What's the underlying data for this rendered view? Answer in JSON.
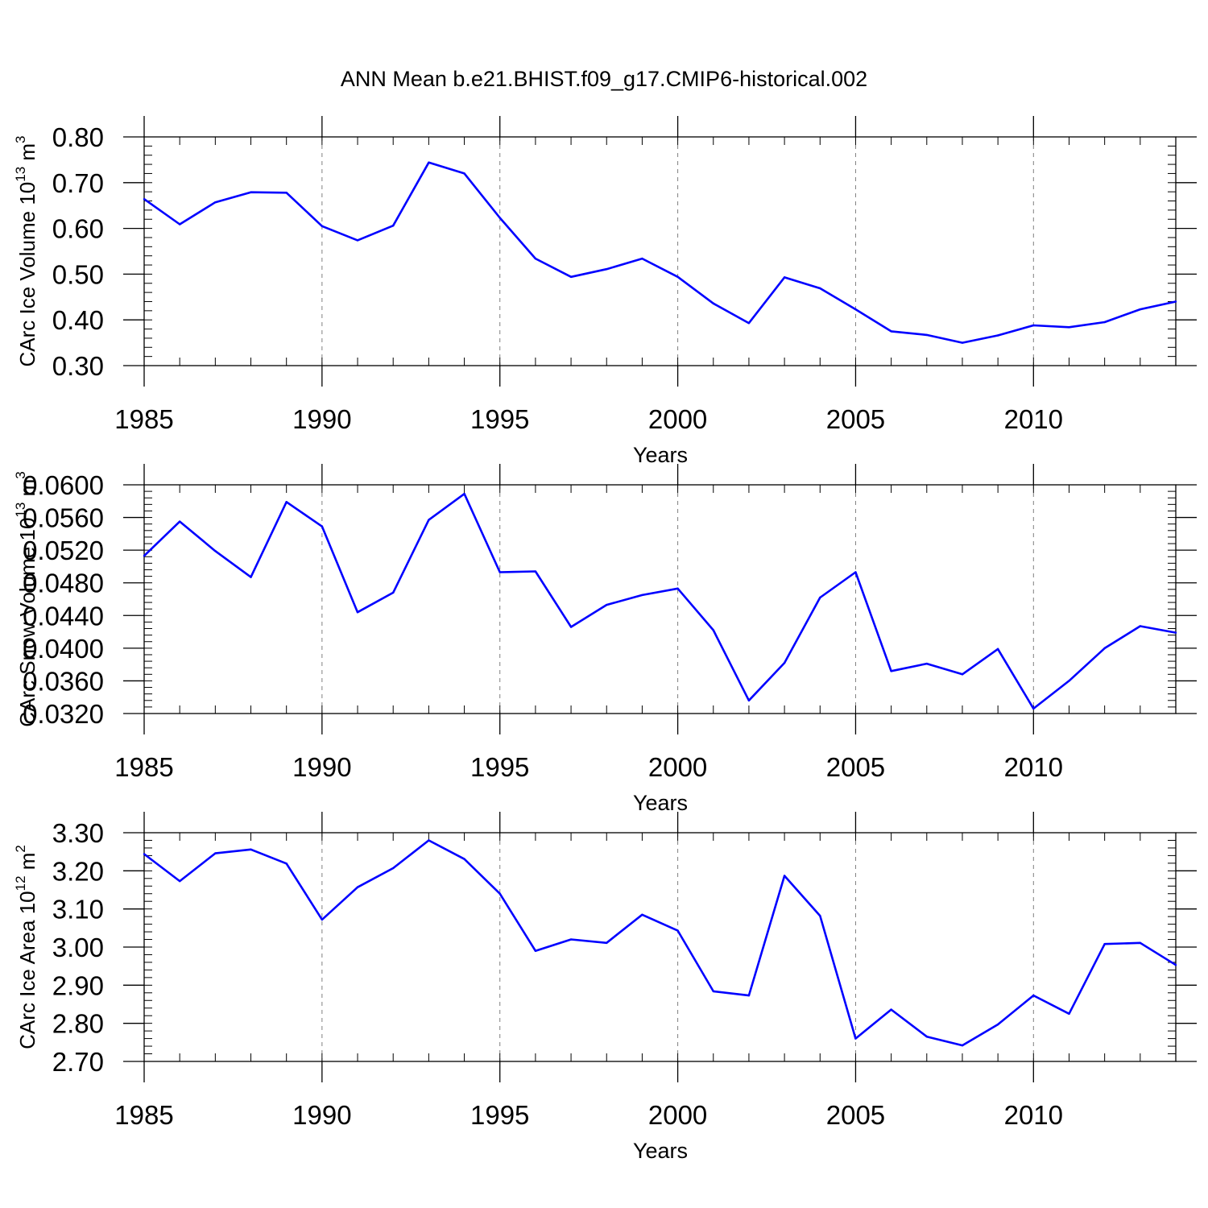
{
  "title": "ANN Mean b.e21.BHIST.f09_g17.CMIP6-historical.002",
  "colors": {
    "line": "#0000ff",
    "axis": "#000000",
    "grid": "#808080"
  },
  "chart_data": [
    {
      "type": "line",
      "ylabel": "CArc Ice Volume 10",
      "ylabel_exp": "13",
      "ylabel_unit": " m",
      "ylabel_unit_exp": "3",
      "xlabel": "Years",
      "xlim": [
        1985,
        2014
      ],
      "ylim": [
        0.3,
        0.8
      ],
      "yticks": [
        "0.30",
        "0.40",
        "0.50",
        "0.60",
        "0.70",
        "0.80"
      ],
      "ytick_values": [
        0.3,
        0.4,
        0.5,
        0.6,
        0.7,
        0.8
      ],
      "xticks": [
        "1985",
        "1990",
        "1995",
        "2000",
        "2005",
        "2010"
      ],
      "xtick_values": [
        1985,
        1990,
        1995,
        2000,
        2005,
        2010
      ],
      "grid_x": [
        1990,
        1995,
        2000,
        2005,
        2010
      ],
      "x": [
        1985,
        1986,
        1987,
        1988,
        1989,
        1990,
        1991,
        1992,
        1993,
        1994,
        1995,
        1996,
        1997,
        1998,
        1999,
        2000,
        2001,
        2002,
        2003,
        2004,
        2005,
        2006,
        2007,
        2008,
        2009,
        2010,
        2011,
        2012,
        2013,
        2014
      ],
      "values": [
        0.664,
        0.609,
        0.657,
        0.679,
        0.678,
        0.605,
        0.574,
        0.606,
        0.744,
        0.72,
        0.623,
        0.534,
        0.494,
        0.511,
        0.534,
        0.494,
        0.436,
        0.393,
        0.493,
        0.469,
        0.423,
        0.375,
        0.367,
        0.35,
        0.366,
        0.388,
        0.384,
        0.395,
        0.423,
        0.44
      ]
    },
    {
      "type": "line",
      "ylabel": "CArc Snow Volume 10",
      "ylabel_exp": "13",
      "ylabel_unit": " m",
      "ylabel_unit_exp": "3",
      "xlabel": "Years",
      "xlim": [
        1985,
        2014
      ],
      "ylim": [
        0.032,
        0.06
      ],
      "yticks": [
        "0.0320",
        "0.0360",
        "0.0400",
        "0.0440",
        "0.0480",
        "0.0520",
        "0.0560",
        "0.0600"
      ],
      "ytick_values": [
        0.032,
        0.036,
        0.04,
        0.044,
        0.048,
        0.052,
        0.056,
        0.06
      ],
      "xticks": [
        "1985",
        "1990",
        "1995",
        "2000",
        "2005",
        "2010"
      ],
      "xtick_values": [
        1985,
        1990,
        1995,
        2000,
        2005,
        2010
      ],
      "grid_x": [
        1990,
        1995,
        2000,
        2005,
        2010
      ],
      "x": [
        1985,
        1986,
        1987,
        1988,
        1989,
        1990,
        1991,
        1992,
        1993,
        1994,
        1995,
        1996,
        1997,
        1998,
        1999,
        2000,
        2001,
        2002,
        2003,
        2004,
        2005,
        2006,
        2007,
        2008,
        2009,
        2010,
        2011,
        2012,
        2013,
        2014
      ],
      "values": [
        0.0513,
        0.0555,
        0.0519,
        0.0487,
        0.0579,
        0.0549,
        0.0444,
        0.0468,
        0.0557,
        0.0589,
        0.0493,
        0.0494,
        0.0426,
        0.0453,
        0.0465,
        0.0473,
        0.0422,
        0.0336,
        0.0382,
        0.0462,
        0.0493,
        0.0372,
        0.0381,
        0.0368,
        0.0399,
        0.0326,
        0.036,
        0.04,
        0.0427,
        0.0419
      ]
    },
    {
      "type": "line",
      "ylabel": "CArc Ice Area 10",
      "ylabel_exp": "12",
      "ylabel_unit": " m",
      "ylabel_unit_exp": "2",
      "xlabel": "Years",
      "xlim": [
        1985,
        2014
      ],
      "ylim": [
        2.7,
        3.3
      ],
      "yticks": [
        "2.70",
        "2.80",
        "2.90",
        "3.00",
        "3.10",
        "3.20",
        "3.30"
      ],
      "ytick_values": [
        2.7,
        2.8,
        2.9,
        3.0,
        3.1,
        3.2,
        3.3
      ],
      "xticks": [
        "1985",
        "1990",
        "1995",
        "2000",
        "2005",
        "2010"
      ],
      "xtick_values": [
        1985,
        1990,
        1995,
        2000,
        2005,
        2010
      ],
      "grid_x": [
        1990,
        1995,
        2000,
        2005,
        2010
      ],
      "x": [
        1985,
        1986,
        1987,
        1988,
        1989,
        1990,
        1991,
        1992,
        1993,
        1994,
        1995,
        1996,
        1997,
        1998,
        1999,
        2000,
        2001,
        2002,
        2003,
        2004,
        2005,
        2006,
        2007,
        2008,
        2009,
        2010,
        2011,
        2012,
        2013,
        2014
      ],
      "values": [
        3.244,
        3.173,
        3.246,
        3.256,
        3.219,
        3.072,
        3.157,
        3.207,
        3.28,
        3.231,
        3.14,
        2.99,
        3.02,
        3.011,
        3.085,
        3.043,
        2.884,
        2.873,
        3.187,
        3.082,
        2.76,
        2.836,
        2.765,
        2.742,
        2.797,
        2.873,
        2.825,
        3.008,
        3.011,
        2.953
      ]
    }
  ]
}
